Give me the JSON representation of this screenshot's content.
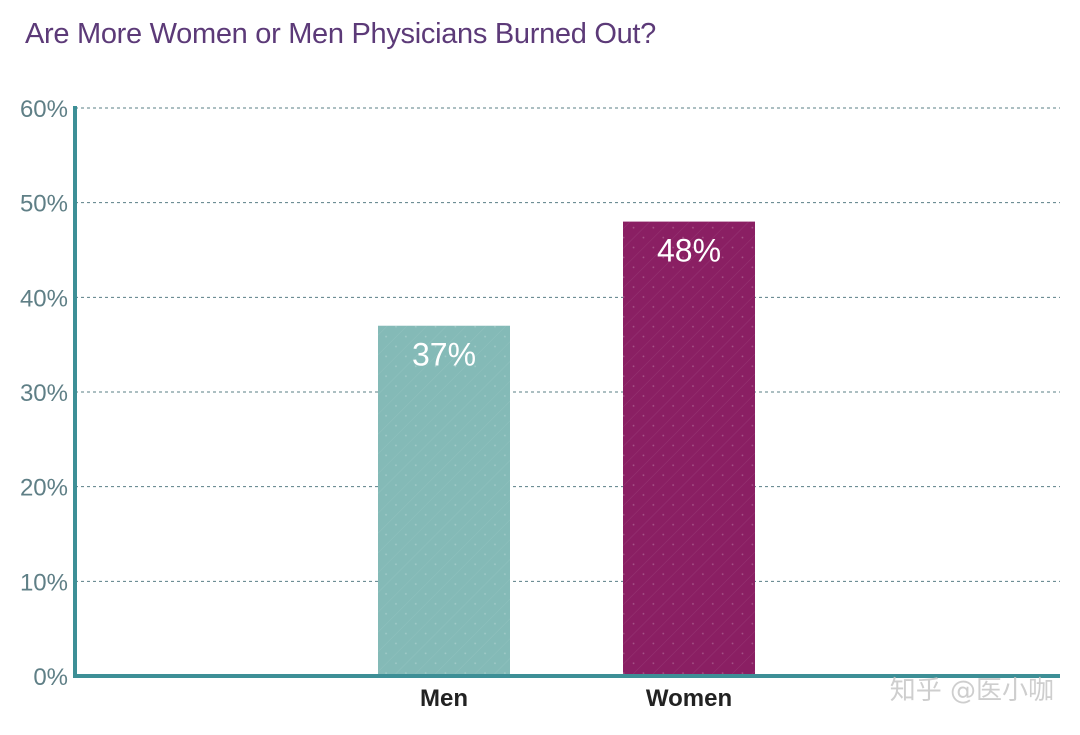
{
  "chart_data": {
    "type": "bar",
    "title": "Are More Women or Men Physicians Burned Out?",
    "categories": [
      "Men",
      "Women"
    ],
    "values": [
      37,
      48
    ],
    "data_labels": [
      "37%",
      "48%"
    ],
    "ylim": [
      0,
      60
    ],
    "yticks": [
      "0%",
      "10%",
      "20%",
      "30%",
      "40%",
      "50%",
      "60%"
    ],
    "grid": true,
    "xlabel": "",
    "ylabel": "",
    "colors": {
      "men": "#84bab7",
      "women": "#8a1f63",
      "axis": "#3d8f96",
      "grid": "#5a7f86",
      "title": "#5c3a78",
      "tick_text": "#5f7f86",
      "category_text": "#222222",
      "bar_label": "#ffffff"
    }
  },
  "watermark": "知乎 @医小咖"
}
